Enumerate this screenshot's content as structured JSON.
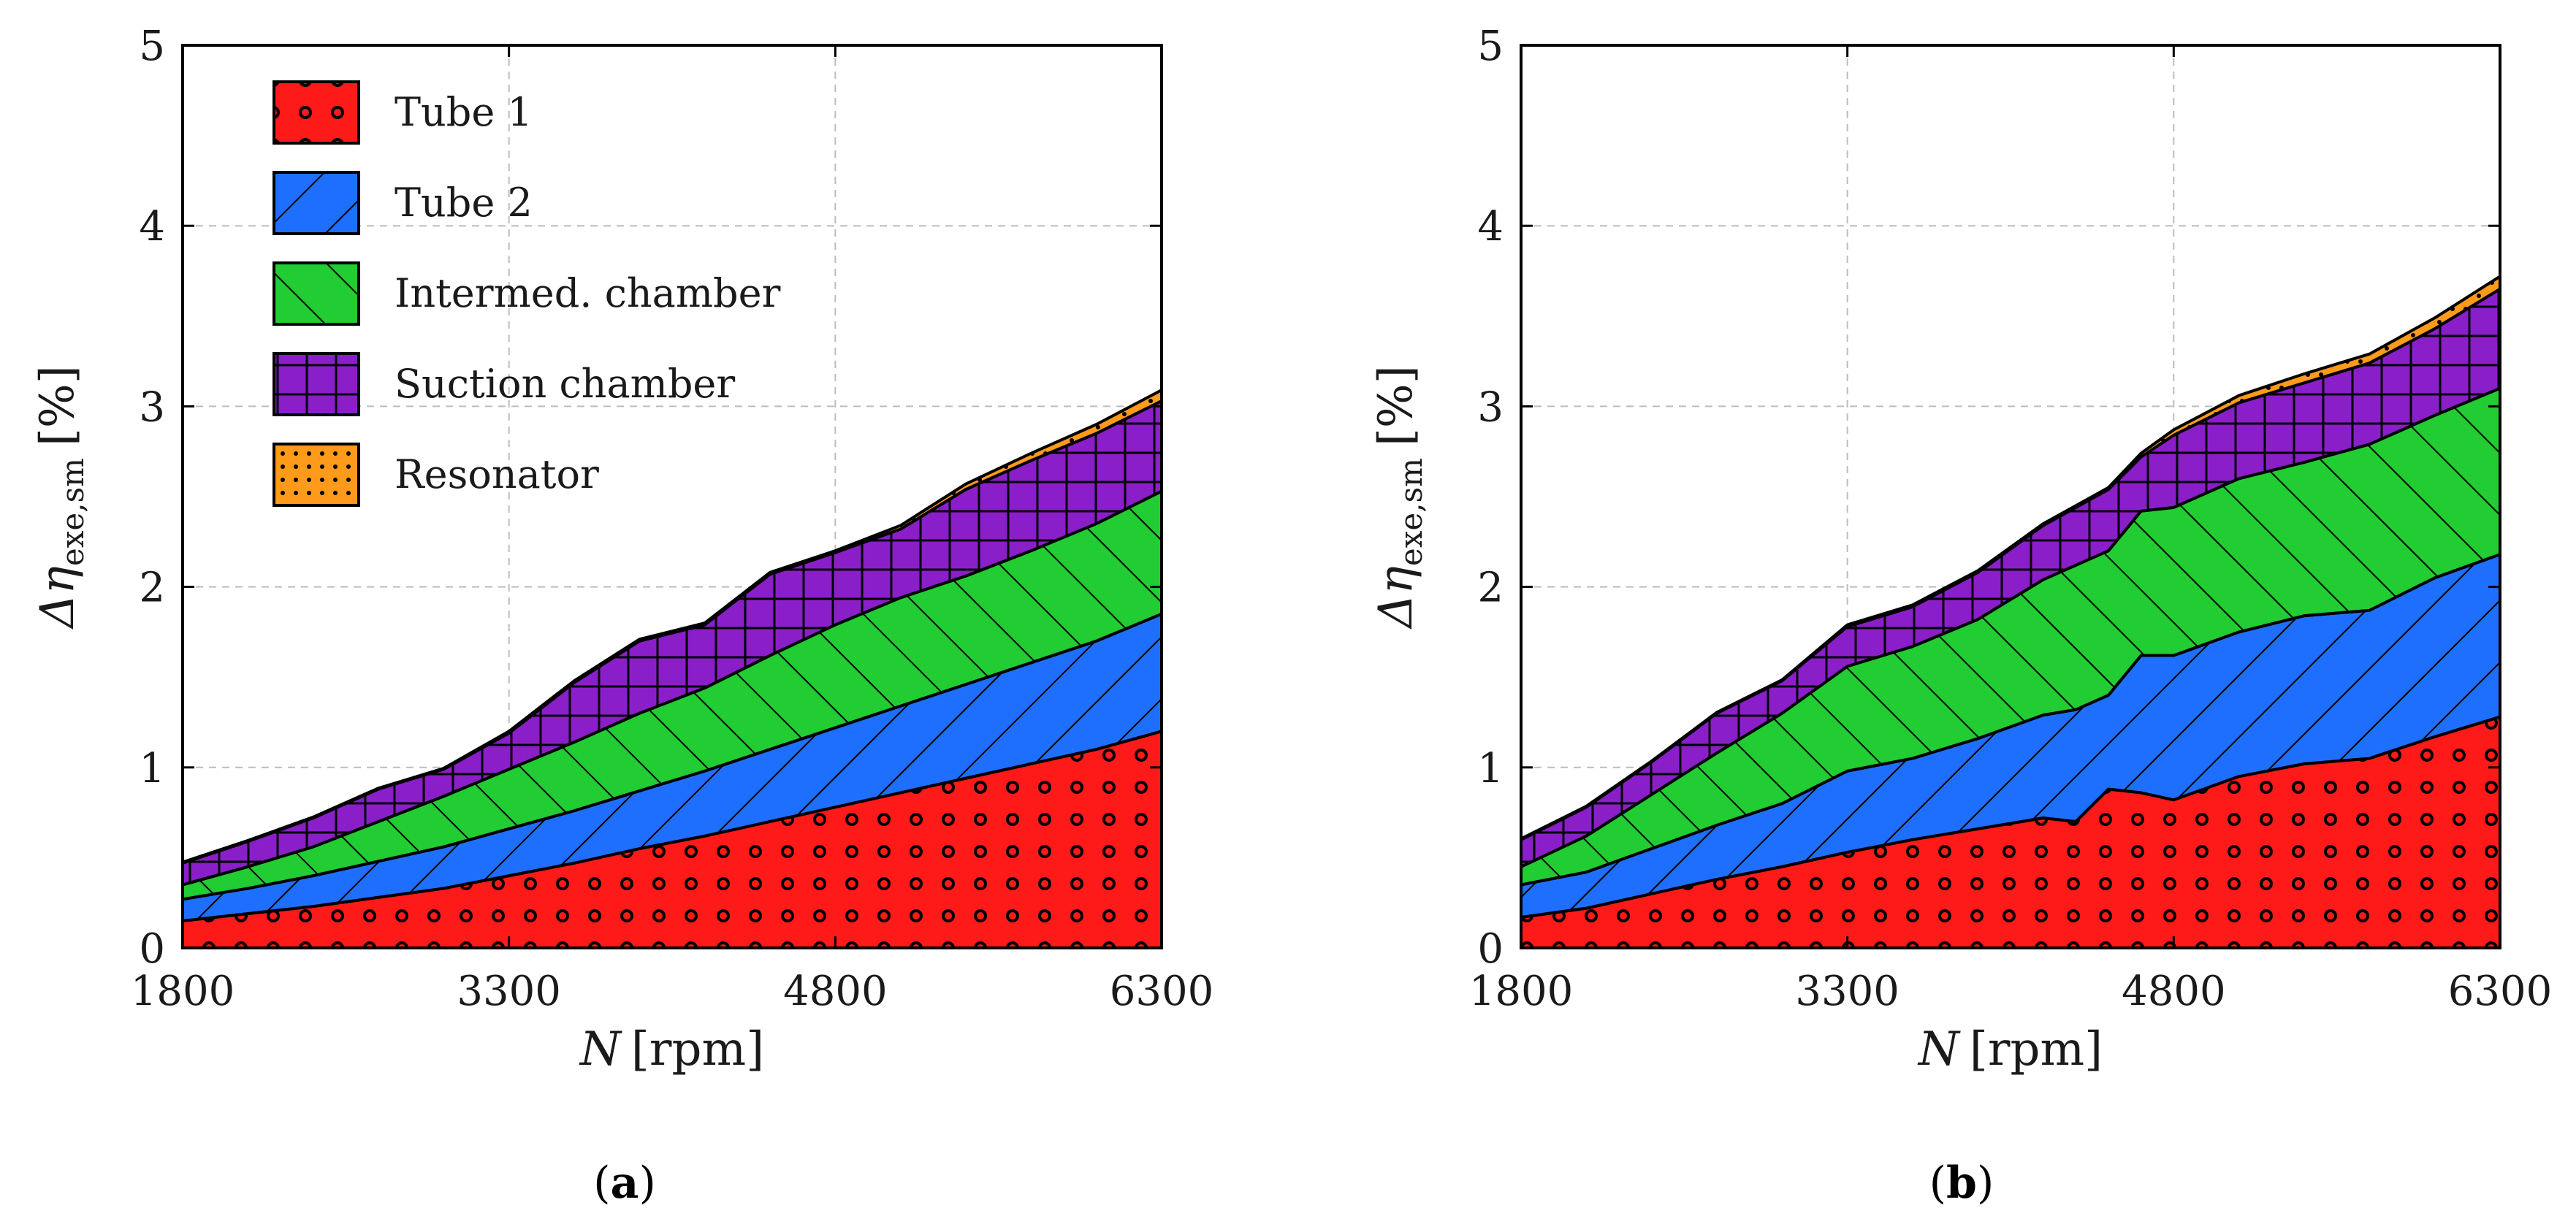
{
  "figure": {
    "panels": [
      {
        "caption_open": "(",
        "caption_letter": "a",
        "caption_close": ")"
      },
      {
        "caption_open": "(",
        "caption_letter": "b",
        "caption_close": ")"
      }
    ]
  },
  "colors": {
    "tube1": "#ff1a1a",
    "tube2": "#1f6fff",
    "intermed": "#22cc33",
    "suction": "#8a1fc9",
    "resonator": "#ff9a1a",
    "grid": "#bdbdbd"
  },
  "chart_data": [
    {
      "type": "area",
      "stacked": true,
      "title": "",
      "xlabel_main": "N",
      "xlabel_unit": "[rpm]",
      "ylabel_main": "Δη",
      "ylabel_sub": "exe,sm",
      "ylabel_unit": "[%]",
      "xlim": [
        1800,
        6300
      ],
      "ylim": [
        0,
        5
      ],
      "xticks": [
        "1800",
        "3300",
        "4800",
        "6300"
      ],
      "yticks": [
        "0",
        "1",
        "2",
        "3",
        "4",
        "5"
      ],
      "legend_position": "top-left",
      "x": [
        1800,
        2100,
        2400,
        2700,
        3000,
        3300,
        3600,
        3900,
        4200,
        4500,
        4800,
        5100,
        5400,
        5700,
        6000,
        6300
      ],
      "series": [
        {
          "name": "Tube 1",
          "values": [
            0.15,
            0.19,
            0.23,
            0.28,
            0.33,
            0.4,
            0.47,
            0.55,
            0.62,
            0.7,
            0.78,
            0.86,
            0.94,
            1.02,
            1.1,
            1.2
          ]
        },
        {
          "name": "Tube 2",
          "values": [
            0.12,
            0.14,
            0.17,
            0.2,
            0.23,
            0.26,
            0.29,
            0.32,
            0.36,
            0.4,
            0.44,
            0.48,
            0.52,
            0.56,
            0.6,
            0.65
          ]
        },
        {
          "name": "Intermed. chamber",
          "values": [
            0.08,
            0.12,
            0.16,
            0.22,
            0.28,
            0.33,
            0.38,
            0.43,
            0.46,
            0.52,
            0.57,
            0.6,
            0.6,
            0.62,
            0.65,
            0.68
          ]
        },
        {
          "name": "Suction chamber",
          "values": [
            0.12,
            0.14,
            0.16,
            0.18,
            0.15,
            0.2,
            0.33,
            0.4,
            0.35,
            0.45,
            0.4,
            0.38,
            0.48,
            0.5,
            0.5,
            0.5
          ]
        },
        {
          "name": "Resonator",
          "values": [
            0.005,
            0.005,
            0.005,
            0.005,
            0.005,
            0.01,
            0.01,
            0.01,
            0.01,
            0.01,
            0.01,
            0.02,
            0.03,
            0.04,
            0.05,
            0.06
          ]
        }
      ]
    },
    {
      "type": "area",
      "stacked": true,
      "title": "",
      "xlabel_main": "N",
      "xlabel_unit": "[rpm]",
      "ylabel_main": "Δη",
      "ylabel_sub": "exe,sm",
      "ylabel_unit": "[%]",
      "xlim": [
        1800,
        6300
      ],
      "ylim": [
        0,
        5
      ],
      "xticks": [
        "1800",
        "3300",
        "4800",
        "6300"
      ],
      "yticks": [
        "0",
        "1",
        "2",
        "3",
        "4",
        "5"
      ],
      "x": [
        1800,
        2100,
        2400,
        2700,
        3000,
        3300,
        3600,
        3900,
        4200,
        4350,
        4500,
        4650,
        4800,
        5100,
        5400,
        5700,
        6000,
        6300
      ],
      "series": [
        {
          "name": "Tube 1",
          "values": [
            0.17,
            0.22,
            0.3,
            0.38,
            0.45,
            0.53,
            0.6,
            0.66,
            0.72,
            0.7,
            0.88,
            0.86,
            0.82,
            0.95,
            1.02,
            1.05,
            1.17,
            1.28
          ]
        },
        {
          "name": "Tube 2",
          "values": [
            0.18,
            0.2,
            0.25,
            0.3,
            0.35,
            0.45,
            0.45,
            0.5,
            0.57,
            0.62,
            0.52,
            0.76,
            0.8,
            0.8,
            0.82,
            0.82,
            0.88,
            0.9
          ]
        },
        {
          "name": "Intermed. chamber",
          "values": [
            0.1,
            0.2,
            0.3,
            0.4,
            0.5,
            0.58,
            0.62,
            0.66,
            0.75,
            0.8,
            0.8,
            0.8,
            0.82,
            0.85,
            0.85,
            0.92,
            0.9,
            0.92
          ]
        },
        {
          "name": "Suction chamber",
          "values": [
            0.15,
            0.16,
            0.18,
            0.22,
            0.18,
            0.22,
            0.22,
            0.26,
            0.3,
            0.32,
            0.34,
            0.3,
            0.4,
            0.42,
            0.44,
            0.45,
            0.48,
            0.55
          ]
        },
        {
          "name": "Resonator",
          "values": [
            0.005,
            0.005,
            0.005,
            0.005,
            0.005,
            0.01,
            0.01,
            0.01,
            0.01,
            0.01,
            0.01,
            0.02,
            0.03,
            0.04,
            0.05,
            0.05,
            0.06,
            0.07
          ]
        }
      ]
    }
  ]
}
